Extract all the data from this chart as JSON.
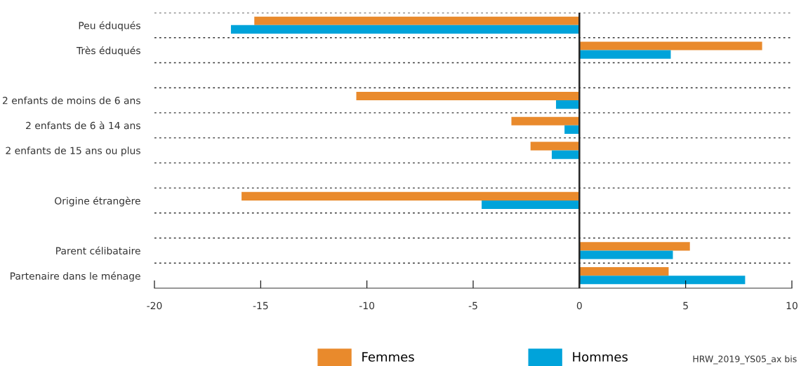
{
  "chart_data": {
    "type": "bar",
    "orientation": "horizontal",
    "categories": [
      "Peu éduqués",
      "Très éduqués",
      null,
      "2 enfants de moins de 6 ans",
      "2 enfants de 6 à 14 ans",
      "2 enfants de 15 ans ou plus",
      null,
      "Origine étrangère",
      null,
      "Parent célibataire",
      "Partenaire dans le ménage"
    ],
    "series": [
      {
        "name": "Femmes",
        "color": "#e98a2c",
        "values": [
          -15.3,
          8.6,
          null,
          -10.5,
          -3.2,
          -2.3,
          null,
          -15.9,
          null,
          5.2,
          4.2
        ]
      },
      {
        "name": "Hommes",
        "color": "#00a3da",
        "values": [
          -16.4,
          4.3,
          null,
          -1.1,
          -0.7,
          -1.3,
          null,
          -4.6,
          null,
          4.4,
          7.8
        ]
      }
    ],
    "xlim": [
      -20,
      10
    ],
    "xticks": [
      -20,
      -15,
      -10,
      -5,
      0,
      5,
      10
    ],
    "grid": "y",
    "legend": "bottom",
    "annotations": [
      "HRW_2019_YS05_ax bis"
    ]
  }
}
